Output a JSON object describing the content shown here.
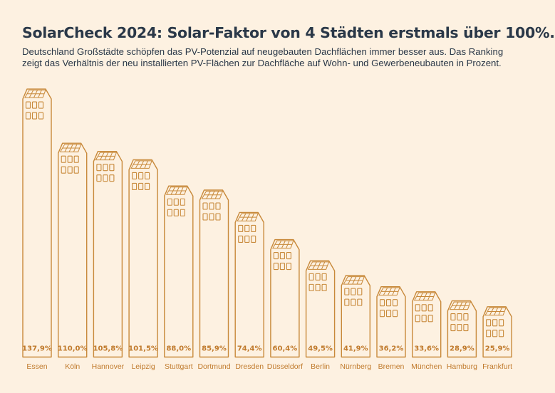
{
  "chart_data": {
    "type": "bar",
    "title": "SolarCheck 2024: Solar-Faktor von 4 Städten erstmals über 100%.",
    "subtitle": "Deutschland Großstädte schöpfen das PV-Potenzial auf neugebauten Dachflächen immer besser aus. Das Ranking zeigt das Verhältnis der neu installierten PV-Flächen zur Dachfläche auf Wohn- und Gewerbeneubauten in Prozent.",
    "categories": [
      "Essen",
      "Köln",
      "Hannover",
      "Leipzig",
      "Stuttgart",
      "Dortmund",
      "Dresden",
      "Düsseldorf",
      "Berlin",
      "Nürnberg",
      "Bremen",
      "München",
      "Hamburg",
      "Frankfurt"
    ],
    "values": [
      137.9,
      110.0,
      105.8,
      101.5,
      88.0,
      85.9,
      74.4,
      60.4,
      49.5,
      41.9,
      36.2,
      33.6,
      28.9,
      25.9
    ],
    "data_labels": [
      "137,9%",
      "110,0%",
      "105,8%",
      "101,5%",
      "88,0%",
      "85,9%",
      "74,4%",
      "60,4%",
      "49,5%",
      "41,9%",
      "36,2%",
      "33,6%",
      "28,9%",
      "25,9%"
    ],
    "unit": "%",
    "bar_style": "building-icon",
    "grid": false,
    "colors": {
      "background": "#fdf1e1",
      "bars": "#c8893a",
      "title": "#2a3848"
    }
  }
}
